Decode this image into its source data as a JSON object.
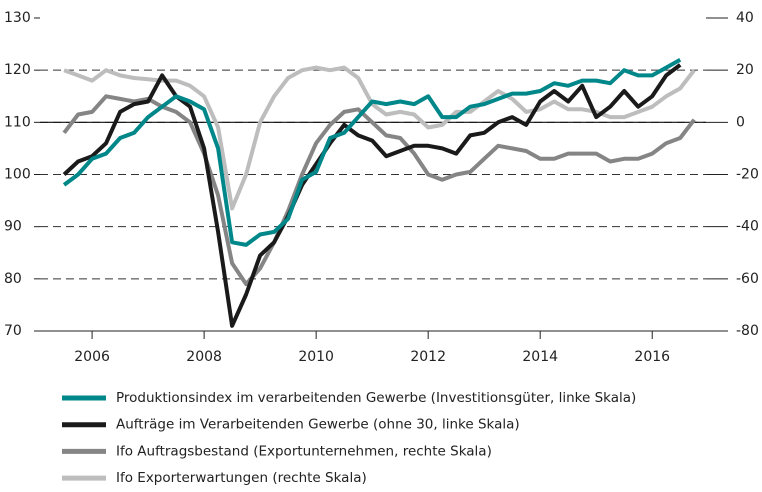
{
  "chart_data": {
    "type": "line",
    "x": [
      2006,
      2006.25,
      2006.5,
      2006.75,
      2007,
      2007.25,
      2007.5,
      2007.75,
      2008,
      2008.25,
      2008.5,
      2008.75,
      2009,
      2009.25,
      2009.5,
      2009.75,
      2010,
      2010.25,
      2010.5,
      2010.75,
      2011,
      2011.25,
      2011.5,
      2011.75,
      2012,
      2012.25,
      2012.5,
      2012.75,
      2013,
      2013.25,
      2013.5,
      2013.75,
      2014,
      2014.25,
      2014.5,
      2014.75,
      2015,
      2015.25,
      2015.5,
      2015.75,
      2016,
      2016.25,
      2016.5,
      2016.75,
      2017,
      2017.25
    ],
    "xlim": [
      2005.57,
      2017.46
    ],
    "xticks": [
      {
        "value": 2006.5,
        "label": "2006"
      },
      {
        "value": 2008.5,
        "label": "2008"
      },
      {
        "value": 2010.5,
        "label": "2010"
      },
      {
        "value": 2012.5,
        "label": "2012"
      },
      {
        "value": 2014.5,
        "label": "2014"
      },
      {
        "value": 2016.5,
        "label": "2016"
      }
    ],
    "ylim": [
      70,
      130
    ],
    "yticks": [
      70,
      80,
      90,
      100,
      110,
      120,
      130
    ],
    "y2lim": [
      -80,
      40
    ],
    "y2ticks": [
      -80,
      -60,
      -40,
      -20,
      0,
      20,
      40
    ],
    "grid": true,
    "series": [
      {
        "name": "Produktionsindex im verarbeitenden Gewerbe (Investitionsgüter, linke Skala)",
        "color": "#00878a",
        "values": [
          98,
          100,
          103,
          104,
          107,
          108,
          111,
          113,
          115,
          114,
          112.5,
          105,
          87,
          86.5,
          88.5,
          89,
          91.5,
          99,
          100.5,
          107,
          108,
          111,
          114,
          113.5,
          114,
          113.5,
          115,
          111,
          111,
          113,
          113.5,
          114.5,
          115.5,
          115.5,
          116,
          117.5,
          117,
          118,
          118,
          117.5,
          120,
          119,
          119,
          120.5,
          122,
          null
        ]
      },
      {
        "name": "Aufträge im Verarbeitenden Gewerbe (ohne 30, linke Skala)",
        "color": "#1a1a1a",
        "values": [
          100,
          102.5,
          103.5,
          106,
          112,
          113.5,
          114,
          119,
          115,
          113,
          105,
          89,
          71,
          77,
          84.5,
          87,
          92,
          98,
          102,
          106,
          109.5,
          107.5,
          106.5,
          103.5,
          104.5,
          105.5,
          105.5,
          105,
          104,
          107.5,
          108,
          110,
          111,
          109.5,
          114,
          116,
          114,
          117,
          111,
          113,
          116,
          113,
          115,
          119,
          121,
          null
        ]
      },
      {
        "name": "Ifo Auftragsbestand (Exportunternehmen, rechte Skala)",
        "color": "#858585",
        "axis": "y2",
        "values": [
          -4,
          3,
          4,
          10,
          9,
          8,
          9,
          6,
          4,
          0,
          -12,
          -28,
          -54,
          -62,
          -56,
          -46,
          -34,
          -20,
          -8,
          -1,
          4,
          5,
          0,
          -5,
          -6,
          -12,
          -20,
          -22,
          -20,
          -19,
          -14,
          -9,
          -10,
          -11,
          -14,
          -14,
          -12,
          -12,
          -12,
          -15,
          -14,
          -14,
          -12,
          -8,
          -6,
          1
        ]
      },
      {
        "name": "Ifo Exporterwartungen (rechte Skala)",
        "color": "#bdbdbd",
        "axis": "y2",
        "values": [
          20,
          18,
          16,
          20,
          18,
          17,
          16.5,
          16,
          16,
          14,
          10,
          -2,
          -33,
          -20,
          0,
          10,
          17,
          20,
          21,
          20,
          21,
          17,
          7,
          3,
          4,
          3,
          -2,
          -1,
          4,
          4,
          8,
          12,
          9,
          4,
          5,
          8,
          5,
          5,
          4,
          2,
          2,
          4,
          6,
          10,
          13,
          20
        ]
      }
    ]
  }
}
